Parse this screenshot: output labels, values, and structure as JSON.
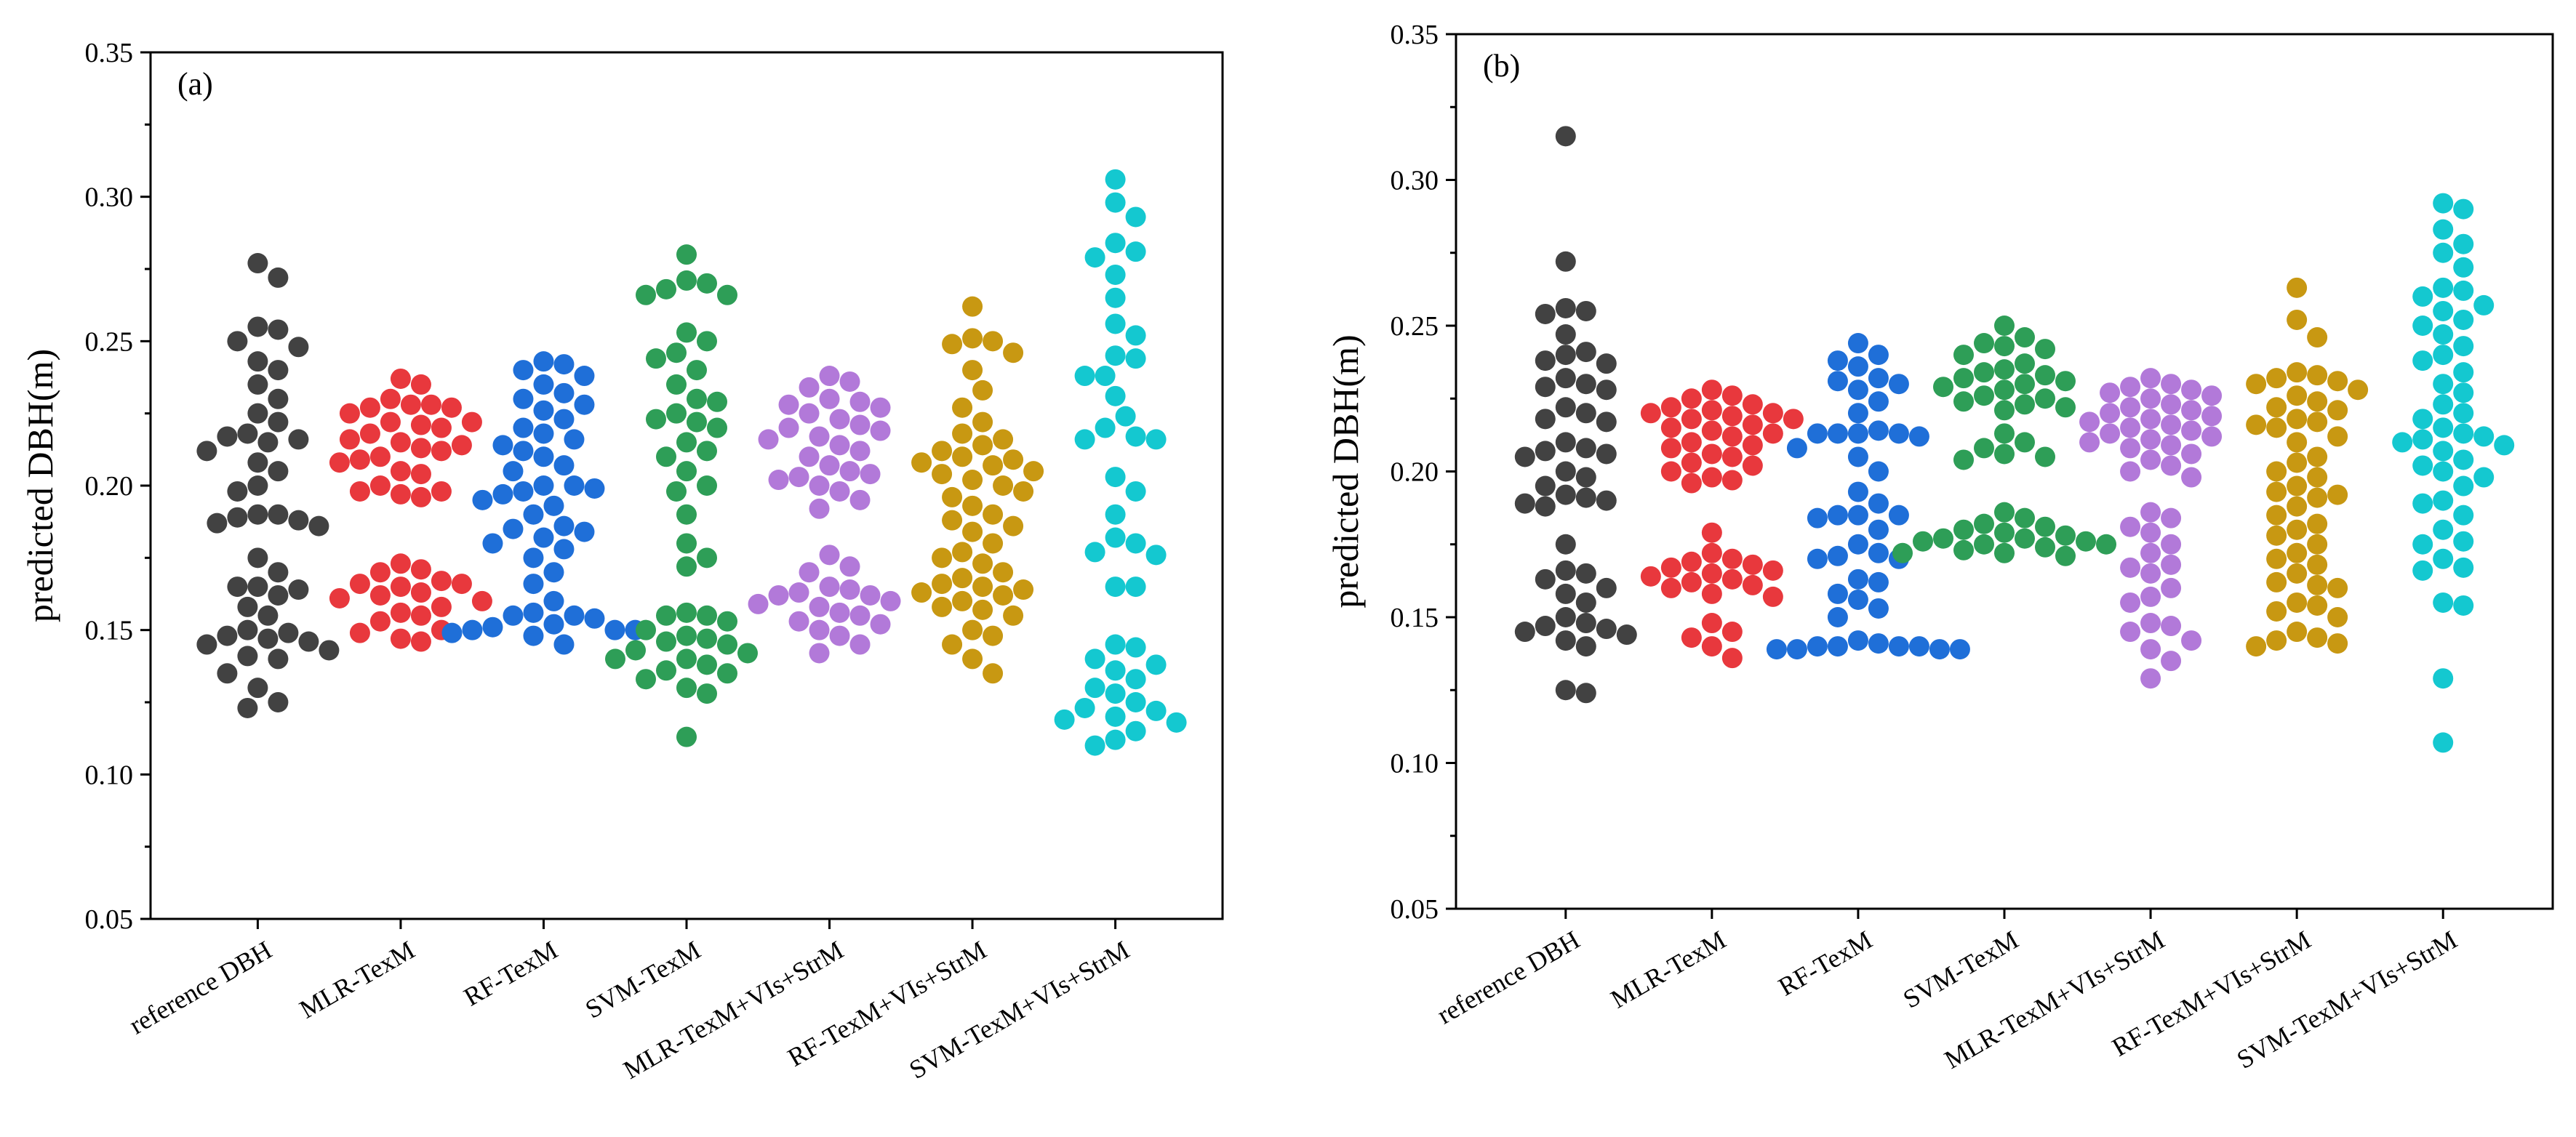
{
  "chart_data": [
    {
      "type": "scatter",
      "subtype": "beeswarm",
      "panel_label": "(a)",
      "title": "",
      "xlabel": "",
      "ylabel": "predicted DBH(m)",
      "ylim": [
        0.05,
        0.35
      ],
      "y_ticks": [
        "0.05",
        "0.10",
        "0.15",
        "0.20",
        "0.25",
        "0.30",
        "0.35"
      ],
      "grid": false,
      "legend": "none",
      "categories": [
        "reference DBH",
        "MLR-TexM",
        "RF-TexM",
        "SVM-TexM",
        "MLR-TexM+VIs+StrM",
        "RF-TexM+VIs+StrM",
        "SVM-TexM+VIs+StrM"
      ],
      "series": [
        {
          "color": "#424242",
          "values": [
            0.277,
            0.272,
            0.255,
            0.254,
            0.25,
            0.248,
            0.243,
            0.24,
            0.235,
            0.23,
            0.225,
            0.222,
            0.218,
            0.217,
            0.216,
            0.215,
            0.212,
            0.208,
            0.205,
            0.2,
            0.198,
            0.19,
            0.19,
            0.189,
            0.188,
            0.187,
            0.186,
            0.175,
            0.17,
            0.165,
            0.165,
            0.164,
            0.162,
            0.158,
            0.155,
            0.15,
            0.149,
            0.148,
            0.147,
            0.146,
            0.145,
            0.143,
            0.141,
            0.14,
            0.135,
            0.13,
            0.125,
            0.123
          ]
        },
        {
          "color": "#e8383d",
          "values": [
            0.237,
            0.235,
            0.23,
            0.228,
            0.228,
            0.227,
            0.227,
            0.225,
            0.222,
            0.222,
            0.221,
            0.22,
            0.218,
            0.216,
            0.215,
            0.214,
            0.213,
            0.212,
            0.21,
            0.209,
            0.208,
            0.205,
            0.204,
            0.2,
            0.198,
            0.198,
            0.197,
            0.196,
            0.173,
            0.171,
            0.17,
            0.167,
            0.166,
            0.166,
            0.165,
            0.163,
            0.162,
            0.161,
            0.16,
            0.158,
            0.156,
            0.155,
            0.153,
            0.15,
            0.149,
            0.147,
            0.146
          ]
        },
        {
          "color": "#1f6fd8",
          "values": [
            0.243,
            0.242,
            0.24,
            0.238,
            0.235,
            0.232,
            0.23,
            0.228,
            0.226,
            0.223,
            0.22,
            0.218,
            0.216,
            0.214,
            0.212,
            0.21,
            0.207,
            0.205,
            0.2,
            0.2,
            0.199,
            0.198,
            0.197,
            0.195,
            0.193,
            0.19,
            0.186,
            0.185,
            0.184,
            0.182,
            0.18,
            0.178,
            0.175,
            0.17,
            0.166,
            0.16,
            0.156,
            0.155,
            0.155,
            0.154,
            0.152,
            0.151,
            0.15,
            0.15,
            0.15,
            0.149,
            0.148,
            0.145
          ]
        },
        {
          "color": "#2e9e57",
          "values": [
            0.28,
            0.271,
            0.27,
            0.268,
            0.266,
            0.266,
            0.253,
            0.25,
            0.246,
            0.244,
            0.24,
            0.235,
            0.23,
            0.229,
            0.225,
            0.223,
            0.222,
            0.22,
            0.215,
            0.212,
            0.21,
            0.205,
            0.2,
            0.198,
            0.19,
            0.18,
            0.175,
            0.172,
            0.156,
            0.155,
            0.155,
            0.153,
            0.15,
            0.148,
            0.147,
            0.146,
            0.145,
            0.143,
            0.142,
            0.14,
            0.14,
            0.138,
            0.136,
            0.135,
            0.133,
            0.13,
            0.128,
            0.113
          ]
        },
        {
          "color": "#b279d9",
          "values": [
            0.238,
            0.236,
            0.234,
            0.23,
            0.229,
            0.228,
            0.227,
            0.225,
            0.223,
            0.221,
            0.22,
            0.219,
            0.217,
            0.216,
            0.214,
            0.212,
            0.21,
            0.207,
            0.205,
            0.204,
            0.203,
            0.202,
            0.2,
            0.198,
            0.195,
            0.192,
            0.176,
            0.172,
            0.17,
            0.165,
            0.164,
            0.163,
            0.162,
            0.162,
            0.16,
            0.159,
            0.158,
            0.156,
            0.155,
            0.153,
            0.152,
            0.15,
            0.148,
            0.145,
            0.142
          ]
        },
        {
          "color": "#c89812",
          "values": [
            0.262,
            0.251,
            0.25,
            0.249,
            0.246,
            0.24,
            0.233,
            0.227,
            0.222,
            0.218,
            0.216,
            0.214,
            0.212,
            0.21,
            0.209,
            0.208,
            0.207,
            0.205,
            0.204,
            0.202,
            0.2,
            0.198,
            0.196,
            0.193,
            0.19,
            0.188,
            0.186,
            0.184,
            0.18,
            0.177,
            0.175,
            0.173,
            0.17,
            0.168,
            0.166,
            0.165,
            0.164,
            0.163,
            0.162,
            0.16,
            0.158,
            0.157,
            0.155,
            0.15,
            0.148,
            0.145,
            0.14,
            0.135
          ]
        },
        {
          "color": "#14c8d0",
          "values": [
            0.306,
            0.298,
            0.293,
            0.284,
            0.281,
            0.279,
            0.273,
            0.265,
            0.256,
            0.252,
            0.245,
            0.244,
            0.238,
            0.238,
            0.231,
            0.224,
            0.22,
            0.217,
            0.216,
            0.216,
            0.203,
            0.198,
            0.19,
            0.182,
            0.18,
            0.177,
            0.176,
            0.165,
            0.165,
            0.145,
            0.144,
            0.14,
            0.138,
            0.136,
            0.133,
            0.13,
            0.128,
            0.125,
            0.123,
            0.122,
            0.12,
            0.119,
            0.118,
            0.115,
            0.112,
            0.11
          ]
        }
      ]
    },
    {
      "type": "scatter",
      "subtype": "beeswarm",
      "panel_label": "(b)",
      "title": "",
      "xlabel": "",
      "ylabel": "predicted DBH(m)",
      "ylim": [
        0.05,
        0.35
      ],
      "y_ticks": [
        "0.05",
        "0.10",
        "0.15",
        "0.20",
        "0.25",
        "0.30",
        "0.35"
      ],
      "grid": false,
      "legend": "none",
      "categories": [
        "reference DBH",
        "MLR-TexM",
        "RF-TexM",
        "SVM-TexM",
        "MLR-TexM+VIs+StrM",
        "RF-TexM+VIs+StrM",
        "SVM-TexM+VIs+StrM"
      ],
      "series": [
        {
          "color": "#424242",
          "values": [
            0.315,
            0.272,
            0.256,
            0.255,
            0.254,
            0.247,
            0.241,
            0.24,
            0.238,
            0.237,
            0.232,
            0.23,
            0.229,
            0.228,
            0.222,
            0.22,
            0.218,
            0.217,
            0.21,
            0.208,
            0.207,
            0.206,
            0.205,
            0.2,
            0.198,
            0.195,
            0.192,
            0.191,
            0.19,
            0.189,
            0.188,
            0.175,
            0.166,
            0.165,
            0.163,
            0.16,
            0.158,
            0.155,
            0.15,
            0.148,
            0.147,
            0.146,
            0.145,
            0.144,
            0.142,
            0.14,
            0.125,
            0.124
          ]
        },
        {
          "color": "#e8383d",
          "values": [
            0.228,
            0.226,
            0.225,
            0.223,
            0.222,
            0.221,
            0.22,
            0.22,
            0.219,
            0.218,
            0.218,
            0.216,
            0.215,
            0.214,
            0.213,
            0.212,
            0.21,
            0.209,
            0.208,
            0.206,
            0.205,
            0.203,
            0.202,
            0.2,
            0.198,
            0.197,
            0.196,
            0.179,
            0.172,
            0.17,
            0.169,
            0.168,
            0.167,
            0.166,
            0.165,
            0.164,
            0.163,
            0.162,
            0.161,
            0.16,
            0.158,
            0.157,
            0.148,
            0.145,
            0.143,
            0.14,
            0.136
          ]
        },
        {
          "color": "#1f6fd8",
          "values": [
            0.244,
            0.24,
            0.238,
            0.236,
            0.232,
            0.231,
            0.23,
            0.228,
            0.224,
            0.22,
            0.214,
            0.213,
            0.213,
            0.213,
            0.213,
            0.212,
            0.208,
            0.205,
            0.2,
            0.193,
            0.189,
            0.185,
            0.185,
            0.185,
            0.184,
            0.18,
            0.175,
            0.172,
            0.171,
            0.17,
            0.17,
            0.163,
            0.162,
            0.158,
            0.156,
            0.153,
            0.15,
            0.142,
            0.141,
            0.14,
            0.14,
            0.14,
            0.14,
            0.139,
            0.139,
            0.139,
            0.139
          ]
        },
        {
          "color": "#2e9e57",
          "values": [
            0.25,
            0.246,
            0.244,
            0.243,
            0.242,
            0.24,
            0.237,
            0.235,
            0.234,
            0.233,
            0.232,
            0.231,
            0.23,
            0.229,
            0.228,
            0.226,
            0.225,
            0.224,
            0.223,
            0.222,
            0.221,
            0.213,
            0.21,
            0.208,
            0.206,
            0.205,
            0.204,
            0.186,
            0.184,
            0.182,
            0.181,
            0.18,
            0.179,
            0.178,
            0.177,
            0.177,
            0.176,
            0.176,
            0.175,
            0.175,
            0.174,
            0.173,
            0.172,
            0.172,
            0.171
          ]
        },
        {
          "color": "#b279d9",
          "values": [
            0.232,
            0.23,
            0.229,
            0.228,
            0.227,
            0.226,
            0.225,
            0.223,
            0.222,
            0.221,
            0.22,
            0.219,
            0.218,
            0.217,
            0.216,
            0.215,
            0.214,
            0.213,
            0.212,
            0.211,
            0.21,
            0.209,
            0.208,
            0.206,
            0.204,
            0.202,
            0.2,
            0.198,
            0.186,
            0.184,
            0.181,
            0.179,
            0.175,
            0.172,
            0.168,
            0.167,
            0.165,
            0.16,
            0.157,
            0.155,
            0.148,
            0.147,
            0.145,
            0.142,
            0.139,
            0.135,
            0.129
          ]
        },
        {
          "color": "#c89812",
          "values": [
            0.263,
            0.252,
            0.246,
            0.234,
            0.233,
            0.232,
            0.231,
            0.23,
            0.228,
            0.226,
            0.224,
            0.222,
            0.221,
            0.218,
            0.217,
            0.216,
            0.215,
            0.212,
            0.21,
            0.205,
            0.203,
            0.2,
            0.198,
            0.195,
            0.193,
            0.192,
            0.191,
            0.188,
            0.185,
            0.182,
            0.18,
            0.178,
            0.175,
            0.172,
            0.17,
            0.168,
            0.165,
            0.162,
            0.161,
            0.16,
            0.155,
            0.154,
            0.152,
            0.15,
            0.145,
            0.143,
            0.142,
            0.141,
            0.14
          ]
        },
        {
          "color": "#14c8d0",
          "values": [
            0.292,
            0.29,
            0.283,
            0.278,
            0.275,
            0.27,
            0.263,
            0.262,
            0.26,
            0.257,
            0.255,
            0.252,
            0.25,
            0.247,
            0.243,
            0.24,
            0.238,
            0.234,
            0.23,
            0.227,
            0.223,
            0.22,
            0.218,
            0.215,
            0.213,
            0.212,
            0.211,
            0.21,
            0.209,
            0.207,
            0.204,
            0.202,
            0.2,
            0.198,
            0.195,
            0.19,
            0.189,
            0.185,
            0.18,
            0.176,
            0.175,
            0.17,
            0.167,
            0.166,
            0.155,
            0.154,
            0.129,
            0.107
          ]
        }
      ]
    }
  ]
}
